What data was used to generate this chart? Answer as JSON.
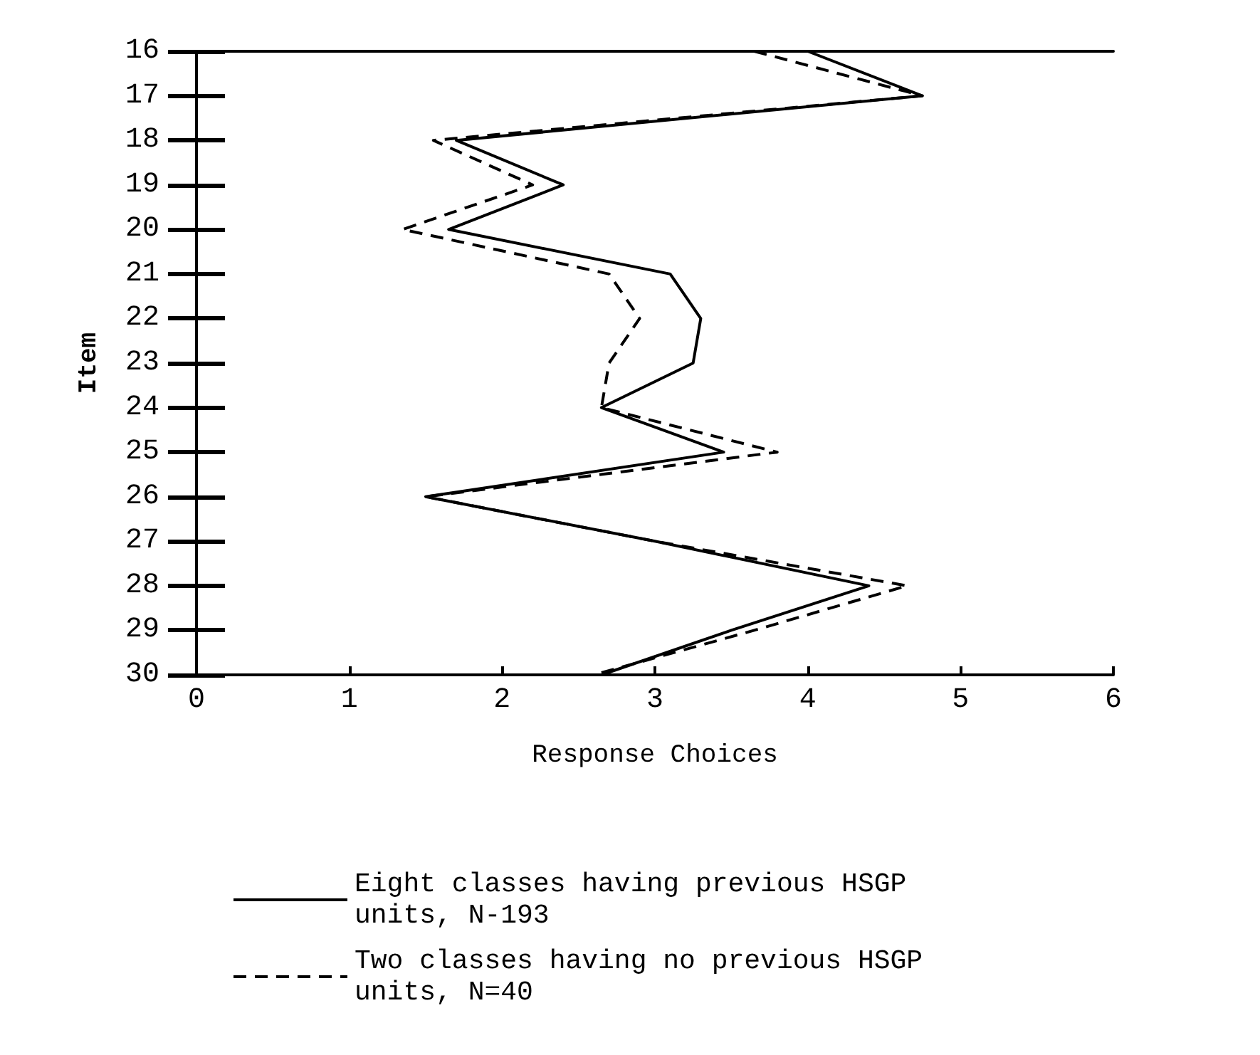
{
  "chart_data": {
    "type": "line",
    "orientation": "horizontal",
    "xlabel": "Response Choices",
    "ylabel": "Item",
    "categories": [
      "16",
      "17",
      "18",
      "19",
      "20",
      "21",
      "22",
      "23",
      "24",
      "25",
      "26",
      "27",
      "28",
      "29",
      "30"
    ],
    "xlim": [
      0,
      6
    ],
    "xticks": [
      0,
      1,
      2,
      3,
      4,
      5,
      6
    ],
    "grid": false,
    "legend": "bottom",
    "marker": "none",
    "series": [
      {
        "name": "Eight classes having previous HSGP units, N-193",
        "color": "#000000",
        "line_style": "solid",
        "values": [
          4.0,
          4.75,
          1.7,
          2.4,
          1.65,
          3.1,
          3.3,
          3.25,
          2.65,
          3.45,
          1.5,
          3.0,
          4.4,
          3.5,
          2.65
        ]
      },
      {
        "name": "Two classes having no previous HSGP units, N=40",
        "color": "#000000",
        "line_style": "dashed",
        "values": [
          3.65,
          4.75,
          1.55,
          2.2,
          1.35,
          2.7,
          2.9,
          2.7,
          2.65,
          3.8,
          1.5,
          3.0,
          4.65,
          3.65,
          2.6
        ]
      }
    ]
  }
}
